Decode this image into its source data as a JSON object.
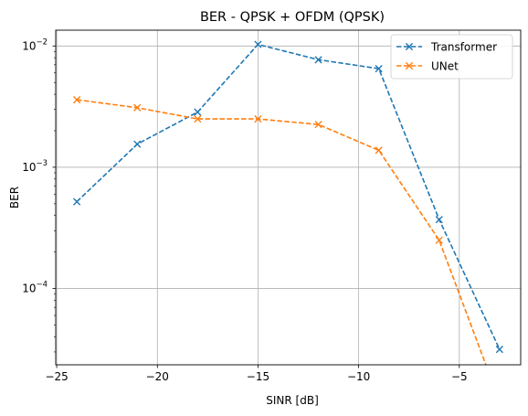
{
  "chart_data": {
    "type": "line",
    "title": "BER - QPSK + OFDM (QPSK)",
    "xlabel": "SINR [dB]",
    "ylabel": "BER",
    "yscale": "log",
    "xlim": [
      -25.05,
      -1.95
    ],
    "ylim": [
      2.35e-05,
      0.0135
    ],
    "x_ticks": [
      {
        "value": -25,
        "label": "−25"
      },
      {
        "value": -20,
        "label": "−20"
      },
      {
        "value": -15,
        "label": "−15"
      },
      {
        "value": -10,
        "label": "−10"
      },
      {
        "value": -5,
        "label": "−5"
      }
    ],
    "y_ticks": [
      {
        "value": 0.0001,
        "base": "10",
        "exp": "−4"
      },
      {
        "value": 0.001,
        "base": "10",
        "exp": "−3"
      },
      {
        "value": 0.01,
        "base": "10",
        "exp": "−2"
      }
    ],
    "grid": true,
    "legend_position": "top-right",
    "series": [
      {
        "name": "Transformer",
        "color": "#1f77b4",
        "x": [
          -24,
          -21,
          -18,
          -15,
          -12,
          -9,
          -6,
          -3
        ],
        "y": [
          0.00052,
          0.00155,
          0.00285,
          0.0103,
          0.0077,
          0.0065,
          0.00037,
          3.15e-05
        ]
      },
      {
        "name": "UNet",
        "color": "#ff7f0e",
        "x": [
          -24,
          -21,
          -18,
          -15,
          -12,
          -9,
          -6,
          -3
        ],
        "y": [
          0.0036,
          0.0031,
          0.0025,
          0.0025,
          0.00225,
          0.00138,
          0.00025,
          0
        ]
      }
    ]
  }
}
